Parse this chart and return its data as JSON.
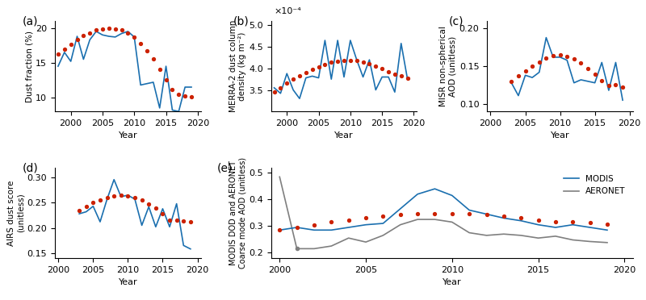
{
  "panel_a": {
    "label": "(a)",
    "ylabel": "Dust fraction (%)",
    "xlabel": "Year",
    "years": [
      1998,
      1999,
      2000,
      2001,
      2002,
      2003,
      2004,
      2005,
      2006,
      2007,
      2008,
      2009,
      2010,
      2011,
      2012,
      2013,
      2014,
      2015,
      2016,
      2017,
      2018,
      2019
    ],
    "values": [
      14.5,
      16.5,
      15.2,
      18.8,
      15.5,
      18.3,
      19.5,
      19.0,
      18.8,
      18.7,
      19.2,
      19.5,
      18.7,
      11.8,
      12.0,
      12.2,
      8.5,
      14.5,
      8.2,
      8.0,
      11.5,
      11.5
    ],
    "trend_x": [
      1998,
      1999,
      2000,
      2001,
      2002,
      2003,
      2004,
      2005,
      2006,
      2007,
      2008,
      2009,
      2010,
      2011,
      2012,
      2013,
      2014,
      2015,
      2016,
      2017,
      2018,
      2019
    ],
    "trend_y": [
      16.2,
      17.0,
      17.7,
      18.3,
      18.9,
      19.3,
      19.7,
      19.9,
      20.0,
      19.9,
      19.7,
      19.3,
      18.7,
      17.8,
      16.7,
      15.5,
      14.1,
      12.6,
      11.1,
      10.5,
      10.2,
      10.1
    ],
    "ylim": [
      8,
      21
    ],
    "yticks": [
      10,
      15,
      20
    ],
    "xlim": [
      1997.5,
      2020.5
    ]
  },
  "panel_b": {
    "label": "(b)",
    "ylabel": "MERRA-2 dust column\ndensity (kg m⁻²)",
    "xlabel": "Year",
    "sci_label": "×10⁻⁴",
    "years": [
      1998,
      1999,
      2000,
      2001,
      2002,
      2003,
      2004,
      2005,
      2006,
      2007,
      2008,
      2009,
      2010,
      2011,
      2012,
      2013,
      2014,
      2015,
      2016,
      2017,
      2018,
      2019
    ],
    "values": [
      3.55,
      3.42,
      3.88,
      3.5,
      3.3,
      3.78,
      3.82,
      3.78,
      4.65,
      3.75,
      4.65,
      3.8,
      4.65,
      4.2,
      3.8,
      4.2,
      3.5,
      3.8,
      3.8,
      3.45,
      4.58,
      3.75
    ],
    "trend_x": [
      1998,
      1999,
      2000,
      2001,
      2002,
      2003,
      2004,
      2005,
      2006,
      2007,
      2008,
      2009,
      2010,
      2011,
      2012,
      2013,
      2014,
      2015,
      2016,
      2017,
      2018,
      2019
    ],
    "trend_y": [
      3.45,
      3.55,
      3.65,
      3.75,
      3.83,
      3.91,
      3.98,
      4.04,
      4.09,
      4.14,
      4.17,
      4.19,
      4.19,
      4.18,
      4.15,
      4.11,
      4.06,
      3.99,
      3.92,
      3.87,
      3.83,
      3.78
    ],
    "ylim": [
      3.0,
      5.1
    ],
    "yticks": [
      3.5,
      4.0,
      4.5,
      5.0
    ],
    "xlim": [
      1997.5,
      2020.5
    ]
  },
  "panel_c": {
    "label": "(c)",
    "ylabel": "MISR non-spherical\nAOD (unitless)",
    "xlabel": "Year",
    "years": [
      2003,
      2004,
      2005,
      2006,
      2007,
      2008,
      2009,
      2010,
      2011,
      2012,
      2013,
      2014,
      2015,
      2016,
      2017,
      2018,
      2019
    ],
    "values": [
      0.128,
      0.111,
      0.138,
      0.135,
      0.142,
      0.188,
      0.162,
      0.162,
      0.158,
      0.128,
      0.132,
      0.13,
      0.128,
      0.155,
      0.118,
      0.155,
      0.105
    ],
    "trend_x": [
      2003,
      2004,
      2005,
      2006,
      2007,
      2008,
      2009,
      2010,
      2011,
      2012,
      2013,
      2014,
      2015,
      2016,
      2017,
      2018,
      2019
    ],
    "trend_y": [
      0.13,
      0.137,
      0.144,
      0.15,
      0.156,
      0.161,
      0.164,
      0.165,
      0.163,
      0.16,
      0.154,
      0.147,
      0.139,
      0.131,
      0.124,
      0.126,
      0.122
    ],
    "ylim": [
      0.09,
      0.21
    ],
    "yticks": [
      0.1,
      0.15,
      0.2
    ],
    "xlim": [
      1999.5,
      2020.5
    ]
  },
  "panel_d": {
    "label": "(d)",
    "ylabel": "AIRS dust score\n(unitless)",
    "xlabel": "Year",
    "years": [
      2003,
      2004,
      2005,
      2006,
      2007,
      2008,
      2009,
      2010,
      2011,
      2012,
      2013,
      2014,
      2015,
      2016,
      2017,
      2018,
      2019
    ],
    "values": [
      0.228,
      0.232,
      0.243,
      0.212,
      0.257,
      0.296,
      0.262,
      0.265,
      0.257,
      0.205,
      0.242,
      0.202,
      0.238,
      0.202,
      0.248,
      0.165,
      0.158
    ],
    "trend_x": [
      2003,
      2004,
      2005,
      2006,
      2007,
      2008,
      2009,
      2010,
      2011,
      2012,
      2013,
      2014,
      2015,
      2016,
      2017,
      2018,
      2019
    ],
    "trend_y": [
      0.235,
      0.243,
      0.25,
      0.256,
      0.261,
      0.264,
      0.265,
      0.264,
      0.261,
      0.256,
      0.248,
      0.239,
      0.228,
      0.216,
      0.215,
      0.214,
      0.212
    ],
    "ylim": [
      0.14,
      0.32
    ],
    "yticks": [
      0.15,
      0.2,
      0.25,
      0.3
    ],
    "xlim": [
      1999.5,
      2020.5
    ]
  },
  "panel_e": {
    "label": "(e)",
    "ylabel": "MODIS DOD and AERONET\nCoarse mode AOD (unitless)",
    "xlabel": "Year",
    "modis_years": [
      2000,
      2001,
      2002,
      2003,
      2004,
      2005,
      2006,
      2007,
      2008,
      2009,
      2010,
      2011,
      2012,
      2013,
      2014,
      2015,
      2016,
      2017,
      2018,
      2019
    ],
    "modis_values": [
      0.285,
      0.295,
      0.285,
      0.285,
      0.295,
      0.305,
      0.31,
      0.365,
      0.42,
      0.44,
      0.415,
      0.36,
      0.345,
      0.33,
      0.32,
      0.305,
      0.295,
      0.305,
      0.295,
      0.285
    ],
    "aeronet_years": [
      2000,
      2001,
      2002,
      2003,
      2004,
      2005,
      2006,
      2007,
      2008,
      2009,
      2010,
      2011,
      2012,
      2013,
      2014,
      2015,
      2016,
      2017,
      2018,
      2019
    ],
    "aeronet_values": [
      0.485,
      0.215,
      0.215,
      0.225,
      0.255,
      0.24,
      0.265,
      0.305,
      0.325,
      0.325,
      0.315,
      0.275,
      0.265,
      0.27,
      0.265,
      0.255,
      0.262,
      0.248,
      0.242,
      0.238
    ],
    "aeronet_gap_years": [
      2001
    ],
    "aeronet_gap_values": [
      0.215
    ],
    "trend_x": [
      2000,
      2001,
      2002,
      2003,
      2004,
      2005,
      2006,
      2007,
      2008,
      2009,
      2010,
      2011,
      2012,
      2013,
      2014,
      2015,
      2016,
      2017,
      2018,
      2019
    ],
    "trend_y": [
      0.285,
      0.295,
      0.305,
      0.315,
      0.322,
      0.33,
      0.337,
      0.342,
      0.345,
      0.347,
      0.347,
      0.345,
      0.342,
      0.337,
      0.33,
      0.322,
      0.315,
      0.315,
      0.312,
      0.308
    ],
    "ylim": [
      0.18,
      0.52
    ],
    "yticks": [
      0.2,
      0.3,
      0.4,
      0.5
    ],
    "xlim": [
      1999.5,
      2020.5
    ]
  },
  "blue_color": "#1a6faf",
  "gray_color": "#7f7f7f",
  "red_color": "#cc2200",
  "line_width": 1.2,
  "trend_lw": 1.8
}
